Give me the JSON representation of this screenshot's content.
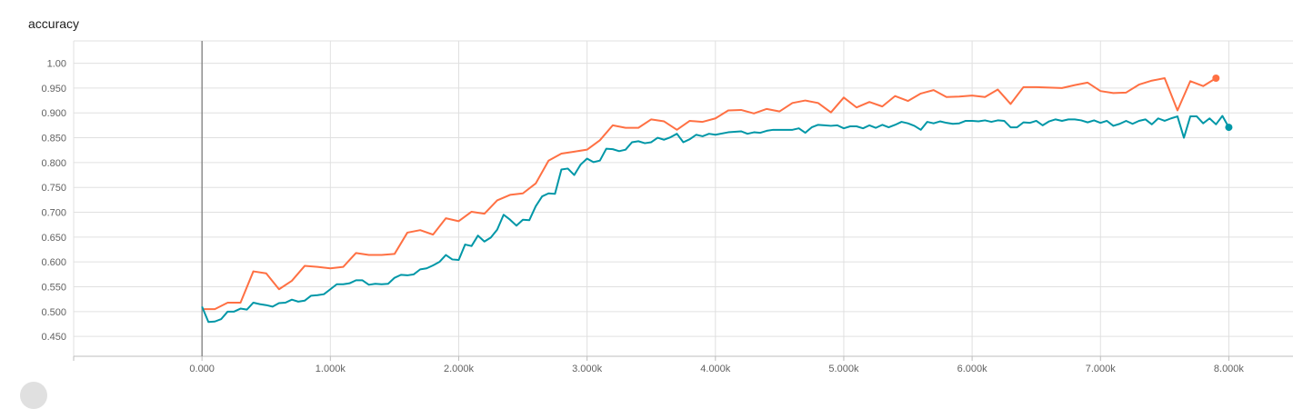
{
  "card": {
    "title": "accuracy"
  },
  "chart_data": {
    "type": "line",
    "title": "accuracy",
    "xlabel": "",
    "ylabel": "",
    "xlim": [
      -1000,
      8500
    ],
    "ylim": [
      0.41,
      1.045
    ],
    "grid": true,
    "y_ticks": [
      0.45,
      0.5,
      0.55,
      0.6,
      0.65,
      0.7,
      0.75,
      0.8,
      0.85,
      0.9,
      0.95,
      1.0
    ],
    "y_tick_labels": [
      "0.450",
      "0.500",
      "0.550",
      "0.600",
      "0.650",
      "0.700",
      "0.750",
      "0.800",
      "0.850",
      "0.900",
      "0.950",
      "1.00"
    ],
    "x_ticks": [
      0,
      1000,
      2000,
      3000,
      4000,
      5000,
      6000,
      7000,
      8000
    ],
    "x_tick_labels": [
      "0.000",
      "1.000k",
      "2.000k",
      "3.000k",
      "4.000k",
      "5.000k",
      "6.000k",
      "7.000k",
      "8.000k"
    ],
    "series": [
      {
        "color": "#ff7043",
        "end_marker": true,
        "points": [
          [
            0,
            0.505
          ],
          [
            100,
            0.505
          ],
          [
            200,
            0.518
          ],
          [
            300,
            0.518
          ],
          [
            400,
            0.581
          ],
          [
            500,
            0.577
          ],
          [
            600,
            0.545
          ],
          [
            700,
            0.562
          ],
          [
            800,
            0.592
          ],
          [
            900,
            0.59
          ],
          [
            1000,
            0.587
          ],
          [
            1100,
            0.59
          ],
          [
            1200,
            0.618
          ],
          [
            1300,
            0.614
          ],
          [
            1400,
            0.614
          ],
          [
            1500,
            0.616
          ],
          [
            1600,
            0.659
          ],
          [
            1700,
            0.664
          ],
          [
            1800,
            0.655
          ],
          [
            1900,
            0.688
          ],
          [
            2000,
            0.682
          ],
          [
            2100,
            0.701
          ],
          [
            2200,
            0.697
          ],
          [
            2300,
            0.724
          ],
          [
            2400,
            0.735
          ],
          [
            2500,
            0.738
          ],
          [
            2600,
            0.758
          ],
          [
            2700,
            0.804
          ],
          [
            2800,
            0.818
          ],
          [
            2900,
            0.822
          ],
          [
            3000,
            0.826
          ],
          [
            3100,
            0.845
          ],
          [
            3200,
            0.875
          ],
          [
            3300,
            0.87
          ],
          [
            3400,
            0.87
          ],
          [
            3500,
            0.887
          ],
          [
            3600,
            0.883
          ],
          [
            3700,
            0.866
          ],
          [
            3800,
            0.884
          ],
          [
            3900,
            0.882
          ],
          [
            4000,
            0.889
          ],
          [
            4100,
            0.905
          ],
          [
            4200,
            0.906
          ],
          [
            4300,
            0.899
          ],
          [
            4400,
            0.908
          ],
          [
            4500,
            0.903
          ],
          [
            4600,
            0.92
          ],
          [
            4700,
            0.925
          ],
          [
            4800,
            0.92
          ],
          [
            4900,
            0.901
          ],
          [
            5000,
            0.931
          ],
          [
            5100,
            0.911
          ],
          [
            5200,
            0.922
          ],
          [
            5300,
            0.913
          ],
          [
            5400,
            0.934
          ],
          [
            5500,
            0.924
          ],
          [
            5600,
            0.939
          ],
          [
            5700,
            0.946
          ],
          [
            5800,
            0.932
          ],
          [
            5900,
            0.933
          ],
          [
            6000,
            0.935
          ],
          [
            6100,
            0.932
          ],
          [
            6200,
            0.947
          ],
          [
            6300,
            0.918
          ],
          [
            6400,
            0.952
          ],
          [
            6500,
            0.952
          ],
          [
            6600,
            0.951
          ],
          [
            6700,
            0.95
          ],
          [
            6800,
            0.956
          ],
          [
            6900,
            0.961
          ],
          [
            7000,
            0.944
          ],
          [
            7100,
            0.94
          ],
          [
            7200,
            0.941
          ],
          [
            7300,
            0.957
          ],
          [
            7400,
            0.965
          ],
          [
            7500,
            0.97
          ],
          [
            7600,
            0.905
          ],
          [
            7700,
            0.964
          ],
          [
            7800,
            0.954
          ],
          [
            7900,
            0.97
          ]
        ]
      },
      {
        "color": "#0097a7",
        "end_marker": true,
        "points": [
          [
            0,
            0.51
          ],
          [
            50,
            0.479
          ],
          [
            100,
            0.48
          ],
          [
            150,
            0.485
          ],
          [
            200,
            0.5
          ],
          [
            250,
            0.5
          ],
          [
            300,
            0.506
          ],
          [
            350,
            0.504
          ],
          [
            400,
            0.518
          ],
          [
            450,
            0.515
          ],
          [
            500,
            0.513
          ],
          [
            550,
            0.51
          ],
          [
            600,
            0.517
          ],
          [
            650,
            0.518
          ],
          [
            700,
            0.524
          ],
          [
            750,
            0.52
          ],
          [
            800,
            0.522
          ],
          [
            850,
            0.532
          ],
          [
            900,
            0.533
          ],
          [
            950,
            0.535
          ],
          [
            1000,
            0.545
          ],
          [
            1050,
            0.555
          ],
          [
            1100,
            0.555
          ],
          [
            1150,
            0.557
          ],
          [
            1200,
            0.563
          ],
          [
            1250,
            0.563
          ],
          [
            1300,
            0.554
          ],
          [
            1350,
            0.556
          ],
          [
            1400,
            0.555
          ],
          [
            1450,
            0.556
          ],
          [
            1500,
            0.568
          ],
          [
            1550,
            0.574
          ],
          [
            1600,
            0.573
          ],
          [
            1650,
            0.575
          ],
          [
            1700,
            0.585
          ],
          [
            1750,
            0.587
          ],
          [
            1800,
            0.593
          ],
          [
            1850,
            0.6
          ],
          [
            1900,
            0.614
          ],
          [
            1950,
            0.605
          ],
          [
            2000,
            0.604
          ],
          [
            2050,
            0.635
          ],
          [
            2100,
            0.632
          ],
          [
            2150,
            0.653
          ],
          [
            2200,
            0.641
          ],
          [
            2250,
            0.649
          ],
          [
            2300,
            0.665
          ],
          [
            2350,
            0.695
          ],
          [
            2400,
            0.685
          ],
          [
            2450,
            0.673
          ],
          [
            2500,
            0.685
          ],
          [
            2550,
            0.684
          ],
          [
            2600,
            0.712
          ],
          [
            2650,
            0.732
          ],
          [
            2700,
            0.738
          ],
          [
            2750,
            0.737
          ],
          [
            2800,
            0.786
          ],
          [
            2850,
            0.788
          ],
          [
            2900,
            0.775
          ],
          [
            2950,
            0.796
          ],
          [
            3000,
            0.808
          ],
          [
            3050,
            0.801
          ],
          [
            3100,
            0.804
          ],
          [
            3150,
            0.828
          ],
          [
            3200,
            0.827
          ],
          [
            3250,
            0.823
          ],
          [
            3300,
            0.826
          ],
          [
            3350,
            0.841
          ],
          [
            3400,
            0.843
          ],
          [
            3450,
            0.839
          ],
          [
            3500,
            0.841
          ],
          [
            3550,
            0.85
          ],
          [
            3600,
            0.846
          ],
          [
            3650,
            0.851
          ],
          [
            3700,
            0.858
          ],
          [
            3750,
            0.841
          ],
          [
            3800,
            0.847
          ],
          [
            3850,
            0.856
          ],
          [
            3900,
            0.853
          ],
          [
            3950,
            0.858
          ],
          [
            4000,
            0.856
          ],
          [
            4100,
            0.861
          ],
          [
            4200,
            0.863
          ],
          [
            4250,
            0.858
          ],
          [
            4300,
            0.861
          ],
          [
            4350,
            0.86
          ],
          [
            4400,
            0.864
          ],
          [
            4450,
            0.866
          ],
          [
            4500,
            0.866
          ],
          [
            4600,
            0.866
          ],
          [
            4650,
            0.869
          ],
          [
            4700,
            0.86
          ],
          [
            4750,
            0.871
          ],
          [
            4800,
            0.876
          ],
          [
            4850,
            0.875
          ],
          [
            4900,
            0.874
          ],
          [
            4950,
            0.875
          ],
          [
            5000,
            0.869
          ],
          [
            5050,
            0.873
          ],
          [
            5100,
            0.873
          ],
          [
            5150,
            0.869
          ],
          [
            5200,
            0.875
          ],
          [
            5250,
            0.87
          ],
          [
            5300,
            0.876
          ],
          [
            5350,
            0.871
          ],
          [
            5400,
            0.876
          ],
          [
            5450,
            0.882
          ],
          [
            5500,
            0.879
          ],
          [
            5550,
            0.874
          ],
          [
            5600,
            0.866
          ],
          [
            5650,
            0.882
          ],
          [
            5700,
            0.879
          ],
          [
            5750,
            0.883
          ],
          [
            5800,
            0.88
          ],
          [
            5850,
            0.878
          ],
          [
            5900,
            0.879
          ],
          [
            5950,
            0.884
          ],
          [
            6000,
            0.884
          ],
          [
            6050,
            0.883
          ],
          [
            6100,
            0.885
          ],
          [
            6150,
            0.882
          ],
          [
            6200,
            0.885
          ],
          [
            6250,
            0.884
          ],
          [
            6300,
            0.871
          ],
          [
            6350,
            0.871
          ],
          [
            6400,
            0.881
          ],
          [
            6450,
            0.88
          ],
          [
            6500,
            0.884
          ],
          [
            6550,
            0.875
          ],
          [
            6600,
            0.883
          ],
          [
            6650,
            0.887
          ],
          [
            6700,
            0.884
          ],
          [
            6750,
            0.887
          ],
          [
            6800,
            0.887
          ],
          [
            6850,
            0.885
          ],
          [
            6900,
            0.881
          ],
          [
            6950,
            0.885
          ],
          [
            7000,
            0.88
          ],
          [
            7050,
            0.884
          ],
          [
            7100,
            0.874
          ],
          [
            7150,
            0.878
          ],
          [
            7200,
            0.884
          ],
          [
            7250,
            0.878
          ],
          [
            7300,
            0.884
          ],
          [
            7350,
            0.887
          ],
          [
            7400,
            0.877
          ],
          [
            7450,
            0.889
          ],
          [
            7500,
            0.884
          ],
          [
            7550,
            0.889
          ],
          [
            7600,
            0.893
          ],
          [
            7650,
            0.85
          ],
          [
            7700,
            0.893
          ],
          [
            7750,
            0.893
          ],
          [
            7800,
            0.879
          ],
          [
            7850,
            0.889
          ],
          [
            7900,
            0.877
          ],
          [
            7950,
            0.894
          ],
          [
            8000,
            0.871
          ]
        ]
      }
    ]
  }
}
